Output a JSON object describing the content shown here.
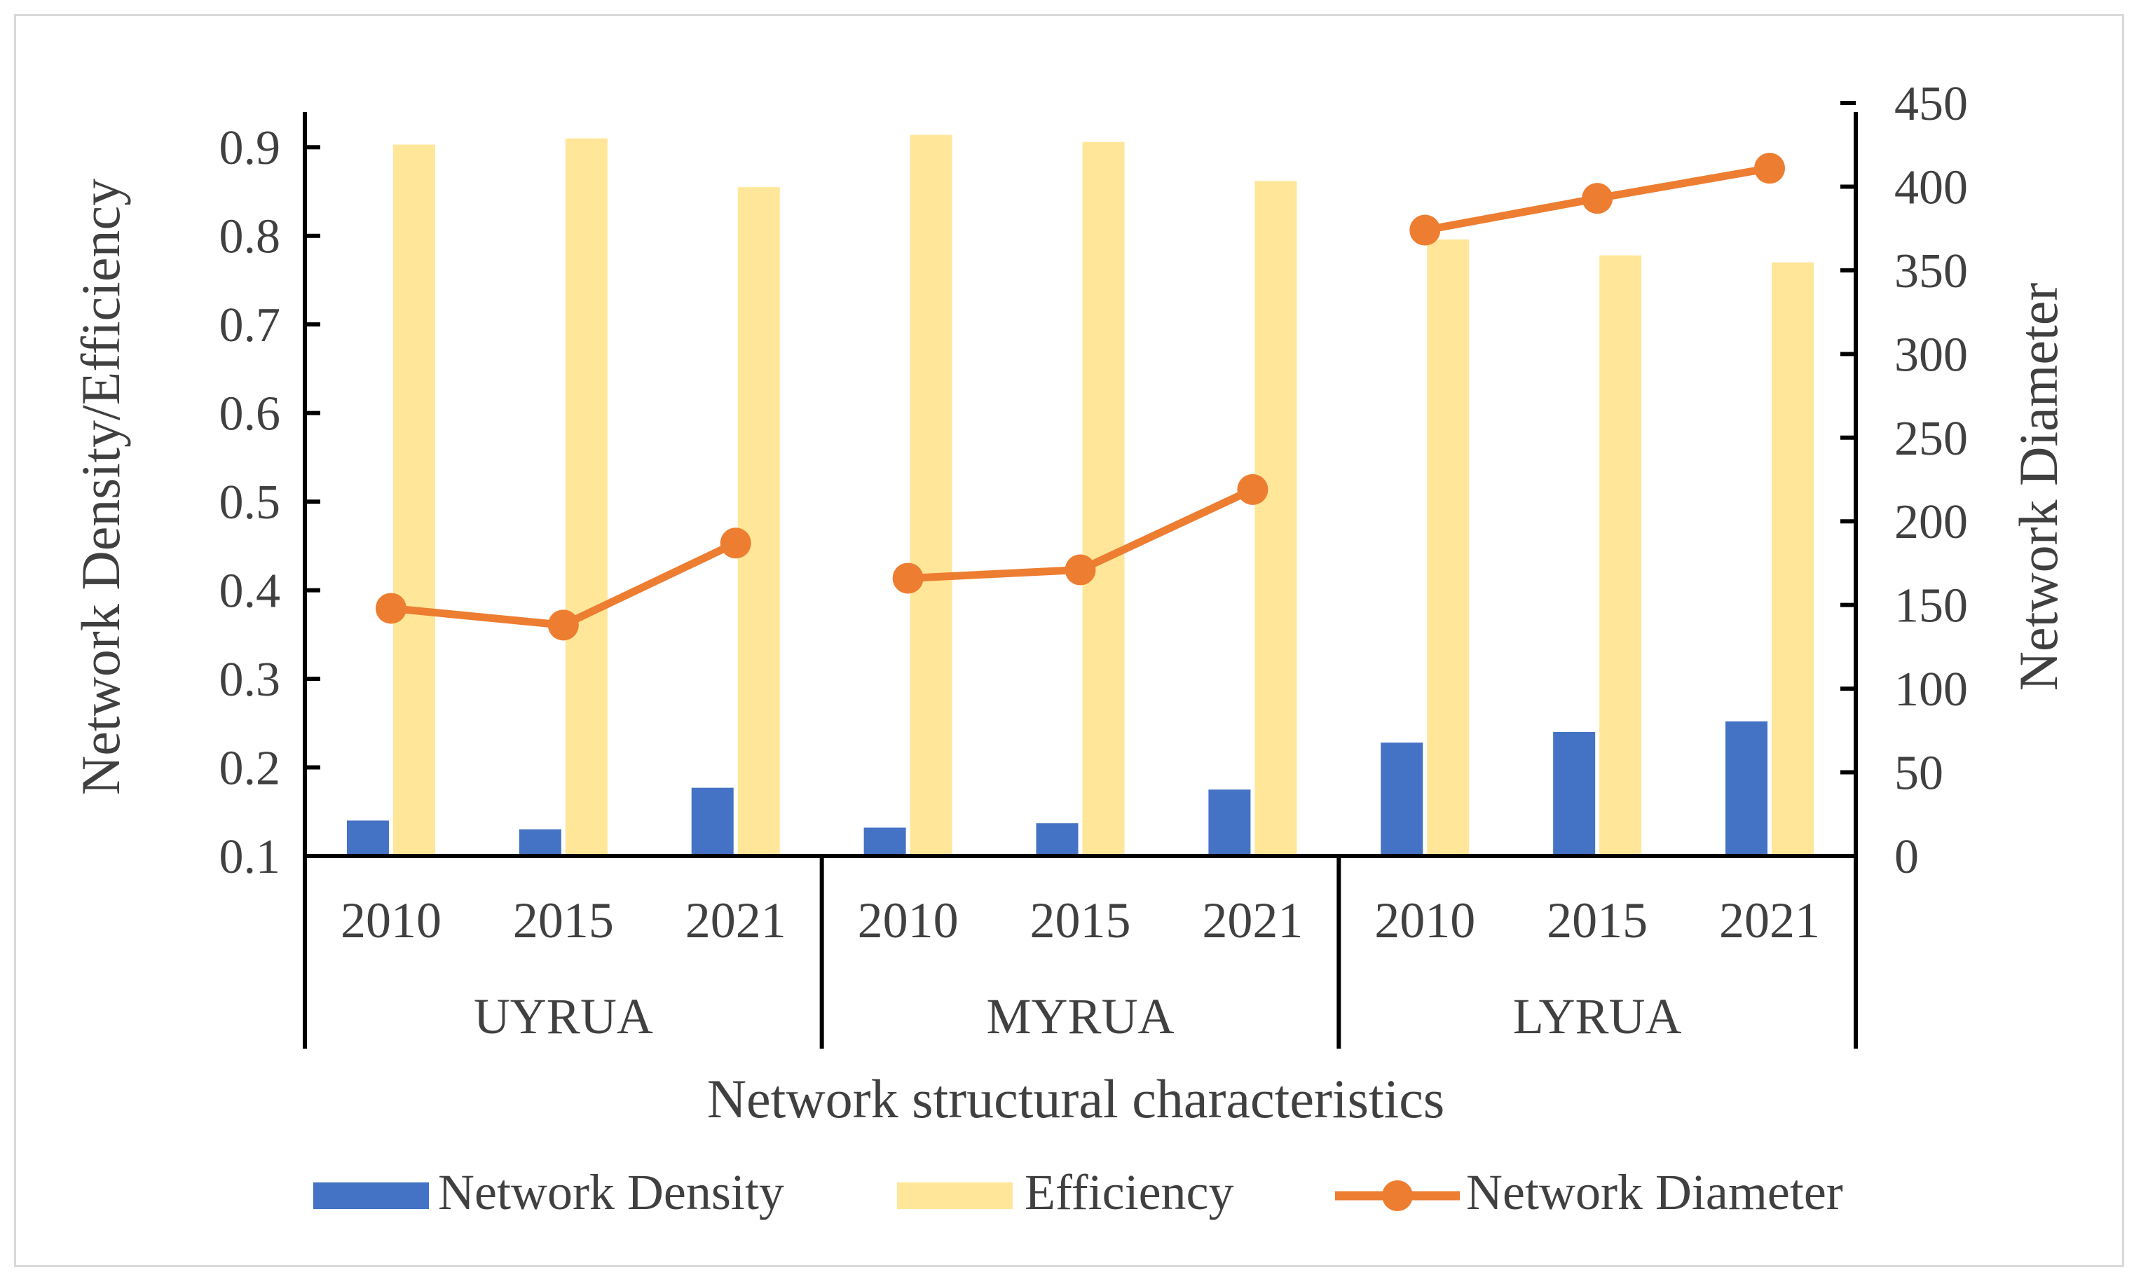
{
  "chart_data": {
    "type": "bar",
    "groups": [
      {
        "name": "UYRUA",
        "years": [
          "2010",
          "2015",
          "2021"
        ]
      },
      {
        "name": "MYRUA",
        "years": [
          "2010",
          "2015",
          "2021"
        ]
      },
      {
        "name": "LYRUA",
        "years": [
          "2010",
          "2015",
          "2021"
        ]
      }
    ],
    "series": [
      {
        "name": "Network Density",
        "kind": "bar",
        "axis": "left",
        "color": "#4472C4",
        "values": [
          0.14,
          0.13,
          0.177,
          0.132,
          0.137,
          0.175,
          0.228,
          0.24,
          0.252
        ]
      },
      {
        "name": "Efficiency",
        "kind": "bar",
        "axis": "left",
        "color": "#FFE699",
        "values": [
          0.903,
          0.91,
          0.855,
          0.914,
          0.906,
          0.862,
          0.796,
          0.778,
          0.77
        ]
      },
      {
        "name": "Network Diameter",
        "kind": "line",
        "axis": "right",
        "color": "#ED7D31",
        "values": [
          148,
          138,
          187,
          166,
          171,
          219,
          374,
          393,
          411
        ]
      }
    ],
    "ylabel": "Network Density/Efficiency",
    "y2label": "Network Diameter",
    "xlabel": "Network structural characteristics",
    "ylim": [
      0.1,
      0.95
    ],
    "y2lim": [
      0,
      450
    ],
    "yticks": [
      "0.1",
      "0.2",
      "0.3",
      "0.4",
      "0.5",
      "0.6",
      "0.7",
      "0.8",
      "0.9"
    ],
    "y2ticks": [
      "0",
      "50",
      "100",
      "150",
      "200",
      "250",
      "300",
      "350",
      "400",
      "450"
    ],
    "legend_position": "bottom"
  }
}
